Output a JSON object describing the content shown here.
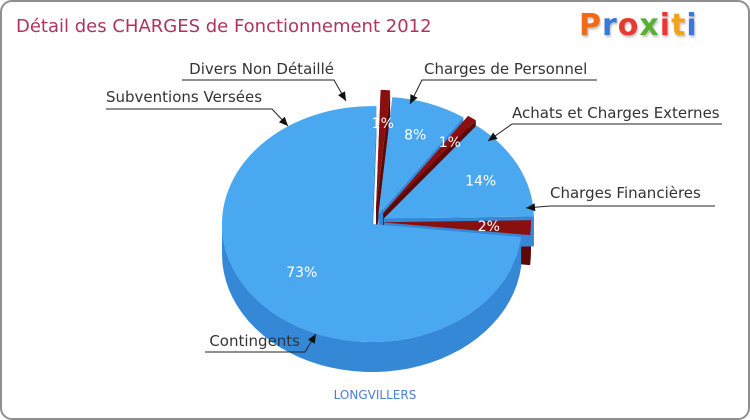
{
  "title": "Détail des CHARGES de Fonctionnement 2012",
  "logo": {
    "text": "Proxiti",
    "letters": [
      "P",
      "r",
      "o",
      "x",
      "i",
      "t",
      "i"
    ],
    "colors": [
      "#f06b13",
      "#3b77d6",
      "#e63a2e",
      "#58b032",
      "#e63a2e",
      "#f0a21a",
      "#3b77d6"
    ]
  },
  "commune": "LONGVILLERS",
  "colors": {
    "title": "#b0325f",
    "blue": "#4aa8f0",
    "blue_side": "#3488d6",
    "red": "#8a1010",
    "red_side": "#5c0808",
    "percent_text": "#ffffff",
    "label_text": "#333333",
    "frame": "#8f8f8f"
  },
  "chart_data": {
    "type": "pie",
    "title": "Détail des CHARGES de Fonctionnement 2012",
    "start_angle_deg": -1,
    "series": [
      {
        "name": "Charges Financières",
        "value": 2,
        "label": "2%",
        "color": "red"
      },
      {
        "name": "Contingents",
        "value": 73,
        "label": "73%",
        "color": "blue"
      },
      {
        "name": "Subventions Versées",
        "value": 1,
        "label": "1%",
        "color": "red"
      },
      {
        "name": "Divers Non Détaillé",
        "value": 8,
        "label": "8%",
        "color": "blue"
      },
      {
        "name": "Charges de Personnel",
        "value": 1,
        "label": "1%",
        "color": "red"
      },
      {
        "name": "Achats et Charges Externes",
        "value": 14,
        "label": "14%",
        "color": "blue"
      }
    ],
    "legend": "leader-lines"
  }
}
